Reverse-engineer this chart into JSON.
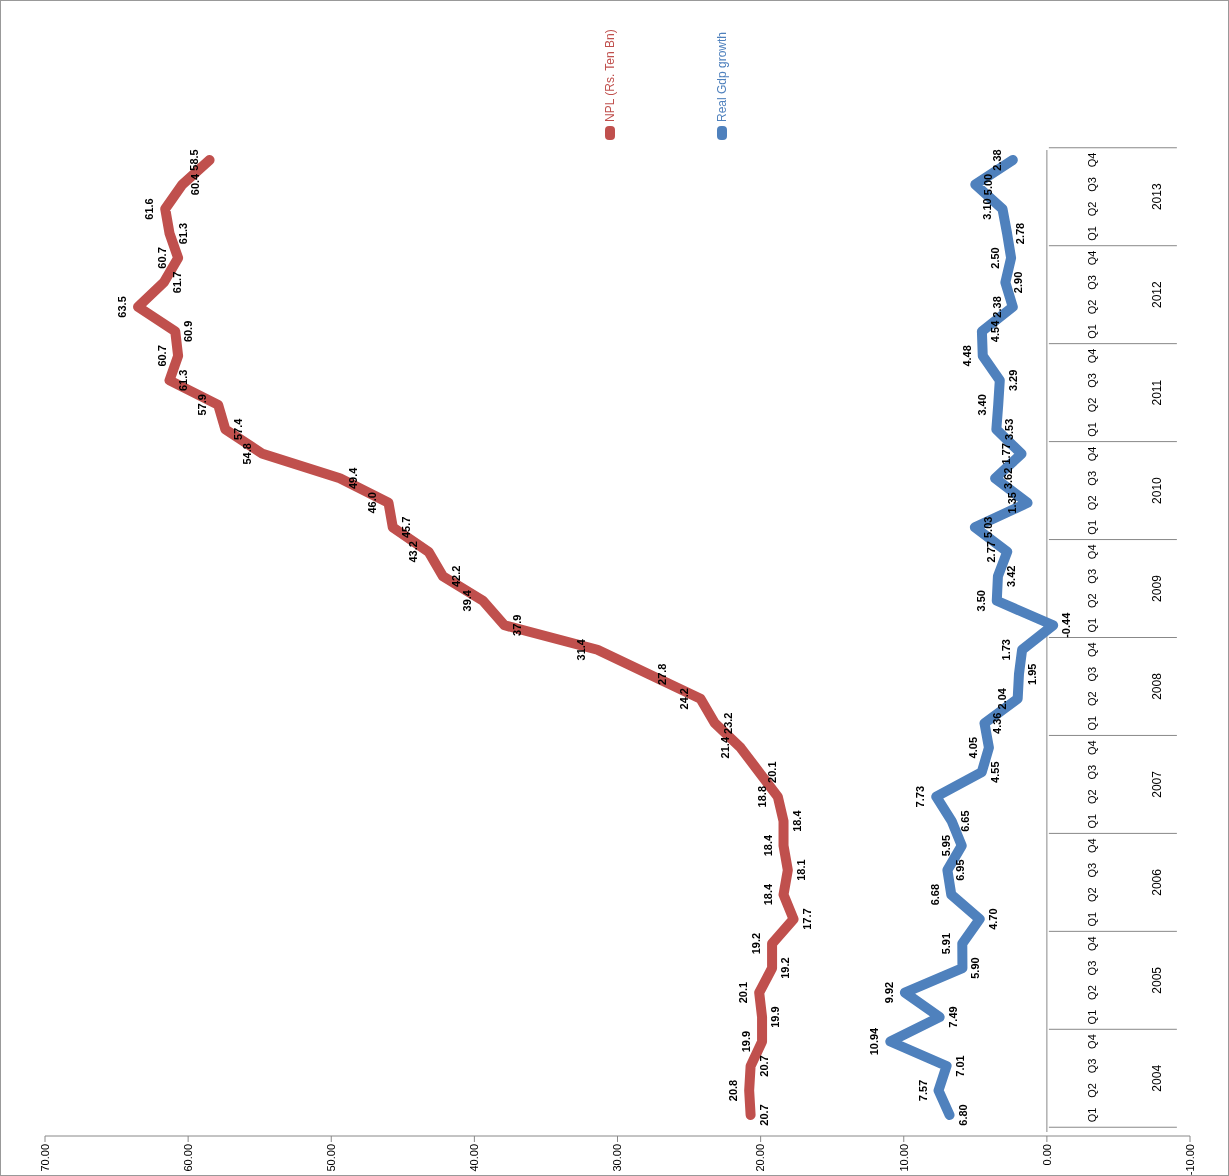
{
  "chart_data": {
    "type": "line",
    "orientation": "horizontal",
    "categories": [
      "Q4",
      "Q3",
      "Q2",
      "Q1",
      "Q4",
      "Q3",
      "Q2",
      "Q1",
      "Q4",
      "Q3",
      "Q2",
      "Q1",
      "Q4",
      "Q3",
      "Q2",
      "Q1",
      "Q4",
      "Q3",
      "Q2",
      "Q1",
      "Q4",
      "Q3",
      "Q2",
      "Q1",
      "Q4",
      "Q3",
      "Q2",
      "Q1",
      "Q4",
      "Q3",
      "Q2",
      "Q1",
      "Q4",
      "Q3",
      "Q2",
      "Q1",
      "Q4",
      "Q3",
      "Q2",
      "Q1"
    ],
    "series": [
      {
        "name": "NPL (Rs. Ten Bn)",
        "color": "#c0504d",
        "values": [
          58.5,
          60.4,
          61.6,
          61.3,
          60.7,
          61.7,
          63.5,
          60.9,
          60.7,
          61.3,
          57.9,
          57.4,
          54.8,
          49.4,
          46.0,
          45.7,
          43.2,
          42.2,
          39.4,
          37.9,
          31.4,
          27.8,
          24.2,
          23.2,
          21.4,
          20.1,
          18.8,
          18.4,
          18.4,
          18.1,
          18.4,
          17.7,
          19.2,
          19.2,
          20.1,
          19.9,
          19.9,
          20.7,
          20.8,
          20.7
        ],
        "value_labels": [
          "58.5",
          "60.4",
          "61.6",
          "61.3",
          "60.7",
          "61.7",
          "63.5",
          "60.9",
          "60.7",
          "61.3",
          "57.9",
          "57.4",
          "54.8",
          "49.4",
          "46.0",
          "45.7",
          "43.2",
          "42.2",
          "39.4",
          "37.9",
          "31.4",
          "27.8",
          "24.2",
          "23.2",
          "21.4",
          "20.1",
          "18.8",
          "18.4",
          "18.4",
          "18.1",
          "18.4",
          "17.7",
          "19.2",
          "19.2",
          "20.1",
          "19.9",
          "19.9",
          "20.7",
          "20.8",
          "20.7"
        ]
      },
      {
        "name": "Real Gdp growth",
        "color": "#4f81bd",
        "values": [
          2.38,
          5.0,
          3.1,
          2.78,
          2.5,
          2.9,
          2.38,
          4.54,
          4.48,
          3.29,
          3.4,
          3.53,
          1.77,
          3.62,
          1.35,
          5.03,
          2.77,
          3.42,
          3.5,
          -0.44,
          1.73,
          1.95,
          2.04,
          4.36,
          4.05,
          4.55,
          7.73,
          6.65,
          5.95,
          6.95,
          6.68,
          4.7,
          5.91,
          5.9,
          9.92,
          7.49,
          10.94,
          7.01,
          7.57,
          6.8
        ],
        "value_labels": [
          "2.38",
          "5.00",
          "3.10",
          "2.78",
          "2.50",
          "2.90",
          "2.38",
          "4.54",
          "4.48",
          "3.29",
          "3.40",
          "3.53",
          "1.77",
          "3.62",
          "1.35",
          "5.03",
          "2.77",
          "3.42",
          "3.50",
          "-0.44",
          "1.73",
          "1.95",
          "2.04",
          "4.36",
          "4.05",
          "4.55",
          "7.73",
          "6.65",
          "5.95",
          "6.95",
          "6.68",
          "4.70",
          "5.91",
          "5.90",
          "9.92",
          "7.49",
          "10.94",
          "7.01",
          "7.57",
          "6.80"
        ]
      }
    ],
    "annotations": [
      "2013",
      "2012",
      "2011",
      "2010",
      "2009",
      "2008",
      "2007",
      "2006",
      "2005",
      "2004"
    ],
    "xlim": [
      70,
      -10
    ],
    "xticks": [
      {
        "value": 70,
        "label": "70.00"
      },
      {
        "value": 60,
        "label": "60.00"
      },
      {
        "value": 50,
        "label": "50.00"
      },
      {
        "value": 40,
        "label": "40.00"
      },
      {
        "value": 30,
        "label": "30.00"
      },
      {
        "value": 20,
        "label": "20.00"
      },
      {
        "value": 10,
        "label": "10.00"
      },
      {
        "value": 0,
        "label": "0.00"
      },
      {
        "value": -10,
        "label": "-10.00"
      }
    ],
    "ref_lines": [
      {
        "axis": "x",
        "value": 0,
        "color": "#888888"
      }
    ],
    "grid": false,
    "legend": "top right",
    "marker": "none",
    "line_style": "solid"
  }
}
